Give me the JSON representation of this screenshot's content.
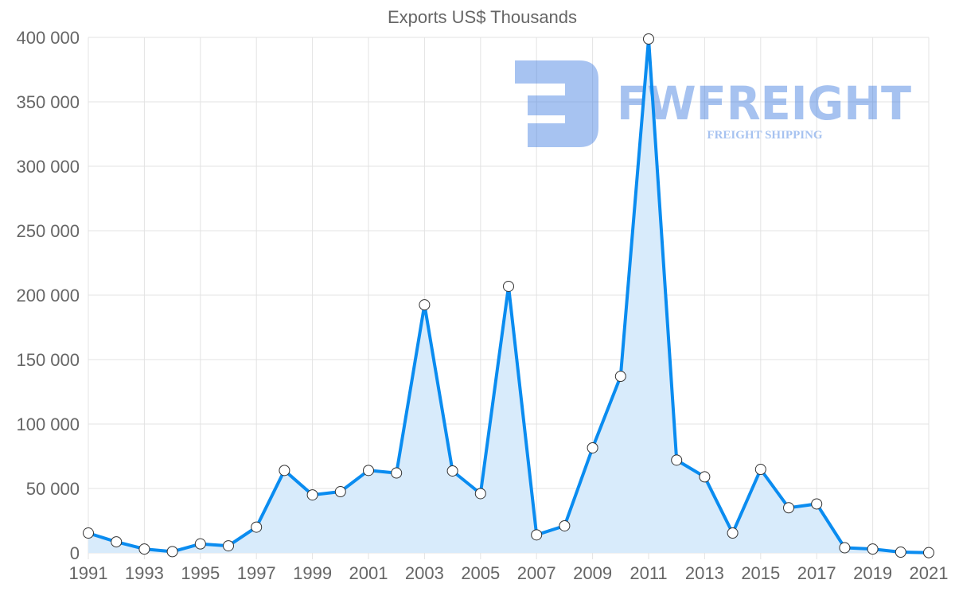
{
  "chart_data": {
    "type": "area",
    "title": "Exports US$ Thousands",
    "xlabel": "",
    "ylabel": "",
    "ylim": [
      0,
      400000
    ],
    "yticks": [
      0,
      50000,
      100000,
      150000,
      200000,
      250000,
      300000,
      350000,
      400000
    ],
    "ytick_labels": [
      "0",
      "50 000",
      "100 000",
      "150 000",
      "200 000",
      "250 000",
      "300 000",
      "350 000",
      "400 000"
    ],
    "x": [
      1991,
      1992,
      1993,
      1994,
      1995,
      1996,
      1997,
      1998,
      1999,
      2000,
      2001,
      2002,
      2003,
      2004,
      2005,
      2006,
      2007,
      2008,
      2009,
      2010,
      2011,
      2012,
      2013,
      2014,
      2015,
      2016,
      2017,
      2018,
      2019,
      2020,
      2021
    ],
    "xtick_labels": [
      "1991",
      "1993",
      "1995",
      "1997",
      "1999",
      "2001",
      "2003",
      "2005",
      "2007",
      "2009",
      "2011",
      "2013",
      "2015",
      "2017",
      "2019",
      "2021"
    ],
    "series": [
      {
        "name": "Exports US$ Thousands",
        "values": [
          15400,
          8600,
          3000,
          1000,
          7000,
          5500,
          20000,
          64000,
          45000,
          47500,
          64000,
          62000,
          192500,
          63600,
          46000,
          206800,
          14000,
          21000,
          81500,
          137000,
          398800,
          72000,
          59000,
          15400,
          64800,
          35000,
          38000,
          4000,
          3000,
          600,
          200
        ]
      }
    ],
    "grid": true,
    "colors": {
      "line": "#0a8cf0",
      "fill": "#d8ebfb",
      "marker_fill": "#ffffff",
      "marker_stroke": "#333333"
    }
  },
  "watermark": {
    "brand": "FWFREIGHT",
    "tagline": "FREIGHT SHIPPING"
  }
}
